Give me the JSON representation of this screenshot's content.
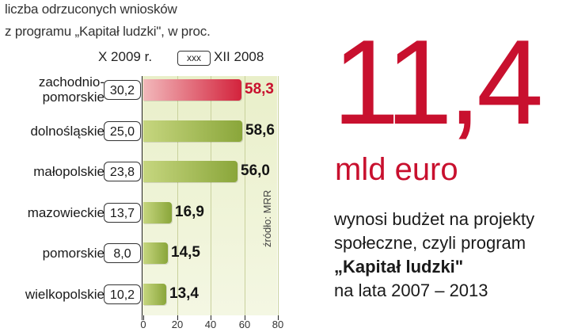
{
  "chart_data": {
    "type": "bar",
    "orientation": "horizontal",
    "title": [
      "liczba odrzuconych wniosków",
      "z programu „Kapitał ludzki\", w proc."
    ],
    "legend": {
      "prev_label": "X 2009 r.",
      "box_label": "xxx",
      "curr_label": "XII 2008"
    },
    "categories": [
      [
        "zachodnio-",
        "pomorskie"
      ],
      [
        "dolnośląskie"
      ],
      [
        "małopolskie"
      ],
      [
        "mazowieckie"
      ],
      [
        "pomorskie"
      ],
      [
        "wielkopolskie"
      ]
    ],
    "series": [
      {
        "name": "X 2009 r.",
        "values": [
          58.3,
          58.6,
          56.0,
          16.9,
          14.5,
          13.4
        ],
        "labels": [
          "58,3",
          "58,6",
          "56,0",
          "16,9",
          "14,5",
          "13,4"
        ]
      },
      {
        "name": "XII 2008",
        "values": [
          30.2,
          25.0,
          23.8,
          13.7,
          8.0,
          10.2
        ],
        "labels": [
          "30,2",
          "25,0",
          "23,8",
          "13,7",
          "8,0",
          "10,2"
        ]
      }
    ],
    "highlight_index": 0,
    "xlim": [
      0,
      80
    ],
    "xticks": [
      0,
      20,
      40,
      60,
      80
    ],
    "grid": true,
    "source": "źródło: MRR"
  },
  "colors": {
    "accent": "#c8102e",
    "bar_green": "#8aa63a",
    "bar_red": "#d3233c",
    "plot_bg": "#e9efc9"
  },
  "callout": {
    "number": "11,4",
    "unit": "mld euro",
    "lines": [
      {
        "text": "wynosi budżet na projekty",
        "bold": false
      },
      {
        "text": "społeczne, czyli program",
        "bold": false
      },
      {
        "text": "„Kapitał ludzki\"",
        "bold": true
      },
      {
        "text": "na lata 2007 – 2013",
        "bold": false
      }
    ]
  }
}
